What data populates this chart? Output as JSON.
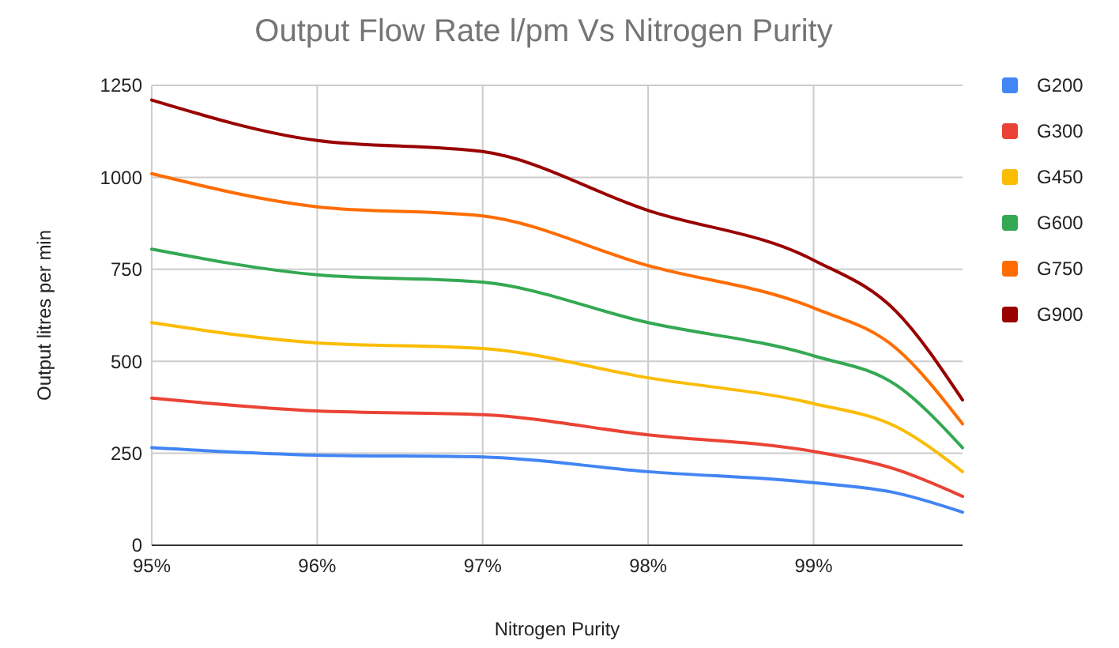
{
  "chart_data": {
    "type": "line",
    "title": "Output Flow Rate l/pm Vs Nitrogen Purity",
    "xlabel": "Nitrogen Purity",
    "ylabel": "Output litres per min",
    "x": [
      95,
      96,
      97,
      98,
      99,
      99.5,
      99.9
    ],
    "series": [
      {
        "name": "G200",
        "color": "#4285f4",
        "values": [
          265,
          245,
          240,
          200,
          170,
          142,
          90
        ]
      },
      {
        "name": "G300",
        "color": "#ea4335",
        "values": [
          400,
          365,
          355,
          300,
          255,
          206,
          133
        ]
      },
      {
        "name": "G450",
        "color": "#fbbc04",
        "values": [
          605,
          550,
          535,
          455,
          385,
          322,
          200
        ]
      },
      {
        "name": "G600",
        "color": "#34a853",
        "values": [
          805,
          735,
          715,
          605,
          515,
          435,
          265
        ]
      },
      {
        "name": "G750",
        "color": "#ff6d01",
        "values": [
          1010,
          920,
          895,
          760,
          645,
          535,
          330
        ]
      },
      {
        "name": "G900",
        "color": "#990000",
        "values": [
          1210,
          1100,
          1070,
          910,
          775,
          635,
          395
        ]
      }
    ],
    "xlim": [
      95,
      99.9
    ],
    "xticks": [
      {
        "value": 95,
        "label": "95%"
      },
      {
        "value": 96,
        "label": "96%"
      },
      {
        "value": 97,
        "label": "97%"
      },
      {
        "value": 98,
        "label": "98%"
      },
      {
        "value": 99,
        "label": "99%"
      }
    ],
    "ylim": [
      0,
      1250
    ],
    "yticks": [
      0,
      250,
      500,
      750,
      1000,
      1250
    ],
    "grid": true,
    "legend": "top right",
    "marker": "none",
    "line_style": "solid"
  }
}
